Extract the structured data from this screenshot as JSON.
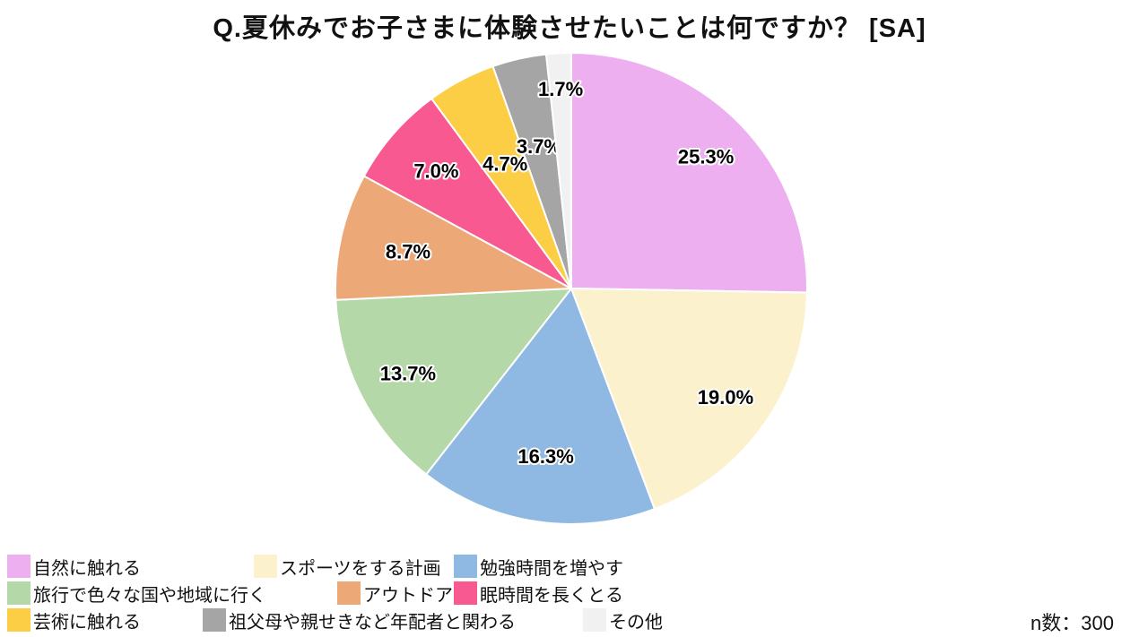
{
  "title": "Q.夏休みでお子さまに体験させたいことは何ですか？ [SA]",
  "sample_size_label": "n数：300",
  "chart_data": {
    "type": "pie",
    "title": "Q.夏休みでお子さまに体験させたいことは何ですか？ [SA]",
    "unit": "%",
    "n": 300,
    "start_angle_deg": 0,
    "direction": "clockwise",
    "legend_position": "bottom-left",
    "slices": [
      {
        "label": "自然に触れる",
        "value": 25.3,
        "color": "#EDAFF0"
      },
      {
        "label": "スポーツをする計画",
        "value": 19.0,
        "color": "#FCF1CD"
      },
      {
        "label": "勉強時間を増やす",
        "value": 16.3,
        "color": "#8FB9E2"
      },
      {
        "label": "旅行で色々な国や地域に行く",
        "value": 13.7,
        "color": "#B5D8A8"
      },
      {
        "label": "アウトドア",
        "value": 8.7,
        "color": "#ECA876"
      },
      {
        "label": "眠時間を長くとる",
        "value": 7.0,
        "color": "#F75990"
      },
      {
        "label": "芸術に触れる",
        "value": 4.7,
        "color": "#FBCE45"
      },
      {
        "label": "祖父母や親せきなど年配者と関わる",
        "value": 3.7,
        "color": "#A5A5A5"
      },
      {
        "label": "その他",
        "value": 1.7,
        "color": "#F1F1F1"
      }
    ]
  }
}
